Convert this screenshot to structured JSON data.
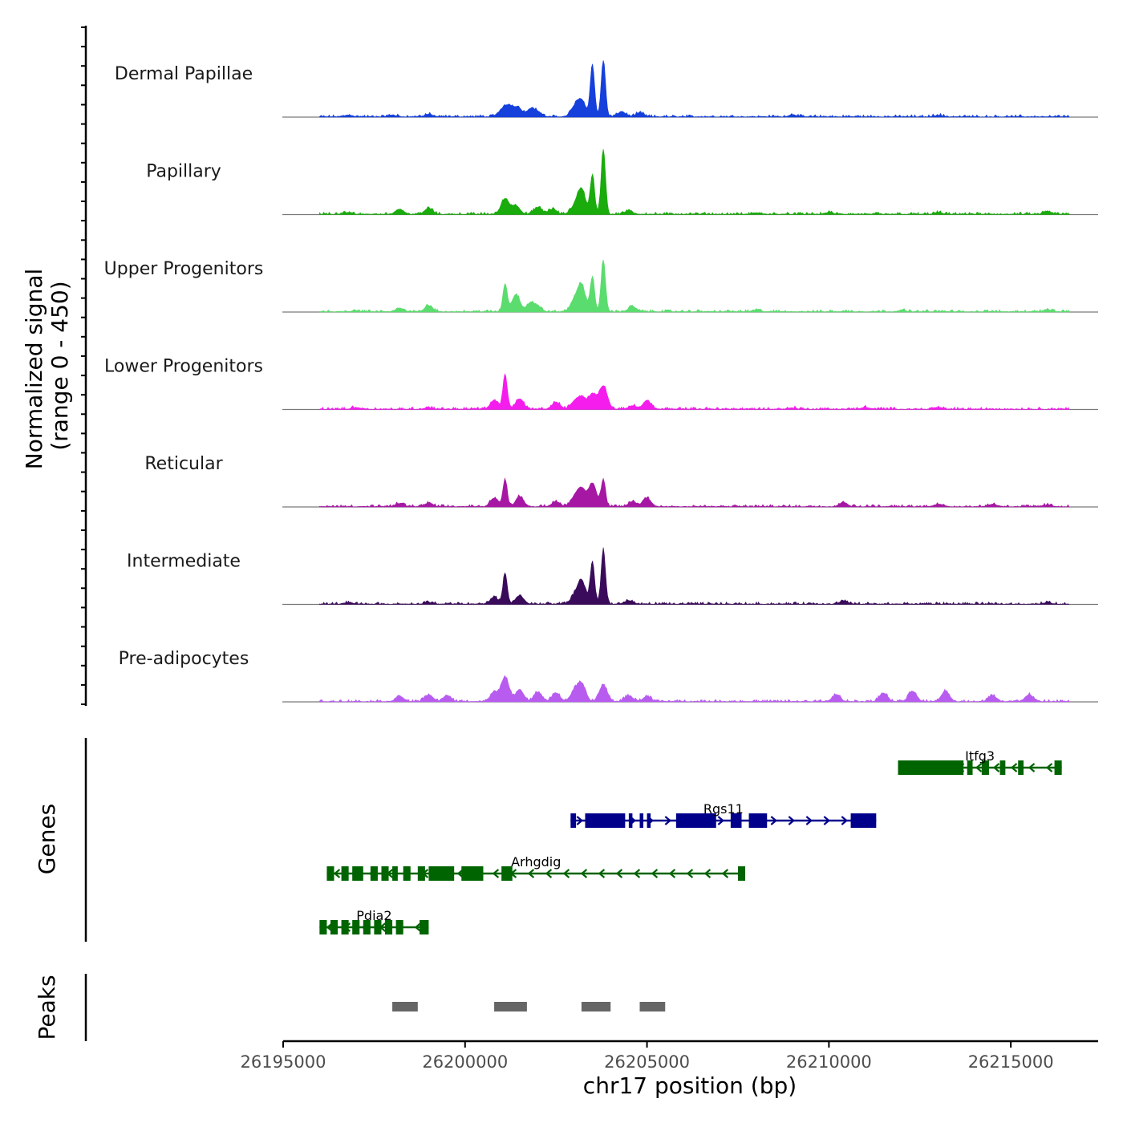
{
  "chart_data": {
    "type": "area",
    "title": "",
    "xlabel": "chr17 position (bp)",
    "ylabel_line1": "Normalized signal",
    "ylabel_line2": "(range 0 - 450)",
    "ylim": [
      0,
      450
    ],
    "xlim": [
      26195000,
      26217400
    ],
    "region": [
      26196000,
      26216600
    ],
    "xticks": [
      26195000,
      26200000,
      26205000,
      26210000,
      26215000
    ],
    "xtick_labels": [
      "26195000",
      "26200000",
      "26205000",
      "26210000",
      "26215000"
    ],
    "series": [
      {
        "name": "Dermal Papillae",
        "color": "#1540dc",
        "peaks": [
          [
            26201000,
            35
          ],
          [
            26201200,
            60
          ],
          [
            26201450,
            55
          ],
          [
            26201800,
            45
          ],
          [
            26202000,
            25
          ],
          [
            26203000,
            50
          ],
          [
            26203200,
            95
          ],
          [
            26203500,
            300
          ],
          [
            26203800,
            325
          ],
          [
            26204300,
            30
          ],
          [
            26204800,
            22
          ],
          [
            26196800,
            10
          ],
          [
            26198000,
            10
          ],
          [
            26199000,
            15
          ],
          [
            26209000,
            12
          ],
          [
            26213000,
            10
          ]
        ]
      },
      {
        "name": "Papillary",
        "color": "#1aab0c",
        "peaks": [
          [
            26201100,
            90
          ],
          [
            26201400,
            50
          ],
          [
            26202000,
            40
          ],
          [
            26202400,
            30
          ],
          [
            26203000,
            40
          ],
          [
            26203200,
            145
          ],
          [
            26203500,
            225
          ],
          [
            26203800,
            375
          ],
          [
            26204500,
            20
          ],
          [
            26198200,
            30
          ],
          [
            26199000,
            35
          ],
          [
            26196800,
            10
          ],
          [
            26208000,
            8
          ],
          [
            26210000,
            10
          ],
          [
            26213000,
            10
          ],
          [
            26216000,
            15
          ]
        ]
      },
      {
        "name": "Upper Progenitors",
        "color": "#5bdc6e",
        "peaks": [
          [
            26201100,
            160
          ],
          [
            26201400,
            100
          ],
          [
            26201800,
            50
          ],
          [
            26202000,
            25
          ],
          [
            26203000,
            60
          ],
          [
            26203200,
            150
          ],
          [
            26203500,
            200
          ],
          [
            26203800,
            300
          ],
          [
            26204600,
            30
          ],
          [
            26198200,
            20
          ],
          [
            26199000,
            35
          ],
          [
            26197000,
            8
          ],
          [
            26208000,
            8
          ],
          [
            26212000,
            8
          ],
          [
            26216000,
            12
          ]
        ]
      },
      {
        "name": "Lower Progenitors",
        "color": "#f51cee",
        "peaks": [
          [
            26201100,
            200
          ],
          [
            26200800,
            50
          ],
          [
            26201500,
            60
          ],
          [
            26202500,
            40
          ],
          [
            26203000,
            40
          ],
          [
            26203200,
            65
          ],
          [
            26203500,
            85
          ],
          [
            26203800,
            135
          ],
          [
            26205000,
            50
          ],
          [
            26204600,
            20
          ],
          [
            26197000,
            10
          ],
          [
            26199000,
            10
          ],
          [
            26209000,
            8
          ],
          [
            26211000,
            10
          ],
          [
            26213000,
            10
          ]
        ]
      },
      {
        "name": "Reticular",
        "color": "#a618a4",
        "peaks": [
          [
            26201100,
            155
          ],
          [
            26200800,
            50
          ],
          [
            26201500,
            60
          ],
          [
            26202500,
            30
          ],
          [
            26203000,
            50
          ],
          [
            26203200,
            100
          ],
          [
            26203500,
            135
          ],
          [
            26203800,
            155
          ],
          [
            26205000,
            50
          ],
          [
            26204600,
            30
          ],
          [
            26198200,
            20
          ],
          [
            26199000,
            20
          ],
          [
            26210400,
            25
          ],
          [
            26213000,
            15
          ],
          [
            26214500,
            15
          ],
          [
            26216000,
            10
          ]
        ]
      },
      {
        "name": "Intermediate",
        "color": "#3a0b5a",
        "peaks": [
          [
            26201100,
            175
          ],
          [
            26200800,
            40
          ],
          [
            26201500,
            50
          ],
          [
            26203000,
            40
          ],
          [
            26203200,
            135
          ],
          [
            26203500,
            245
          ],
          [
            26203800,
            315
          ],
          [
            26204500,
            20
          ],
          [
            26196800,
            8
          ],
          [
            26199000,
            12
          ],
          [
            26210400,
            18
          ],
          [
            26216000,
            8
          ]
        ]
      },
      {
        "name": "Pre-adipocytes",
        "color": "#b85cf0",
        "peaks": [
          [
            26201100,
            140
          ],
          [
            26200800,
            55
          ],
          [
            26201500,
            70
          ],
          [
            26202000,
            55
          ],
          [
            26202500,
            50
          ],
          [
            26203000,
            55
          ],
          [
            26203200,
            100
          ],
          [
            26203800,
            95
          ],
          [
            26204500,
            35
          ],
          [
            26205000,
            30
          ],
          [
            26198200,
            30
          ],
          [
            26199000,
            40
          ],
          [
            26199500,
            35
          ],
          [
            26210200,
            40
          ],
          [
            26211500,
            50
          ],
          [
            26212300,
            60
          ],
          [
            26213200,
            60
          ],
          [
            26214500,
            35
          ],
          [
            26215500,
            40
          ]
        ]
      }
    ],
    "genes": [
      {
        "name": "Itfg3",
        "strand": "-",
        "color": "#006400",
        "start": 26211900,
        "end": 26216400,
        "exons": [
          [
            26211900,
            26213700
          ],
          [
            26213800,
            26213950
          ],
          [
            26214200,
            26214400
          ],
          [
            26214700,
            26214850
          ],
          [
            26215200,
            26215350
          ],
          [
            26216200,
            26216400
          ]
        ]
      },
      {
        "name": "Rgs11",
        "strand": "+",
        "color": "#00008b",
        "start": 26202900,
        "end": 26211300,
        "exons": [
          [
            26202900,
            26203050
          ],
          [
            26203300,
            26204400
          ],
          [
            26204500,
            26204600
          ],
          [
            26204800,
            26204900
          ],
          [
            26205000,
            26205100
          ],
          [
            26205800,
            26206900
          ],
          [
            26207300,
            26207600
          ],
          [
            26207800,
            26208300
          ],
          [
            26210600,
            26211300
          ]
        ]
      },
      {
        "name": "Arhgdig",
        "strand": "-",
        "color": "#006400",
        "start": 26196200,
        "end": 26207700,
        "exons": [
          [
            26196200,
            26196400
          ],
          [
            26196600,
            26196800
          ],
          [
            26196900,
            26197200
          ],
          [
            26197400,
            26197600
          ],
          [
            26197700,
            26197900
          ],
          [
            26198000,
            26198150
          ],
          [
            26198300,
            26198500
          ],
          [
            26198700,
            26198900
          ],
          [
            26199000,
            26199700
          ],
          [
            26199900,
            26200500
          ],
          [
            26201000,
            26201300
          ],
          [
            26207500,
            26207700
          ]
        ]
      },
      {
        "name": "Pdia2",
        "strand": "-",
        "color": "#006400",
        "start": 26196000,
        "end": 26199000,
        "exons": [
          [
            26196000,
            26196200
          ],
          [
            26196300,
            26196500
          ],
          [
            26196600,
            26196800
          ],
          [
            26196900,
            26197100
          ],
          [
            26197200,
            26197400
          ],
          [
            26197500,
            26197700
          ],
          [
            26197800,
            26198000
          ],
          [
            26198100,
            26198300
          ],
          [
            26198750,
            26199000
          ]
        ]
      }
    ],
    "peaks_track": [
      [
        26198000,
        26198700
      ],
      [
        26200800,
        26201700
      ],
      [
        26203200,
        26204000
      ],
      [
        26204800,
        26205500
      ]
    ],
    "panel_labels": {
      "genes": "Genes",
      "peaks": "Peaks"
    }
  }
}
